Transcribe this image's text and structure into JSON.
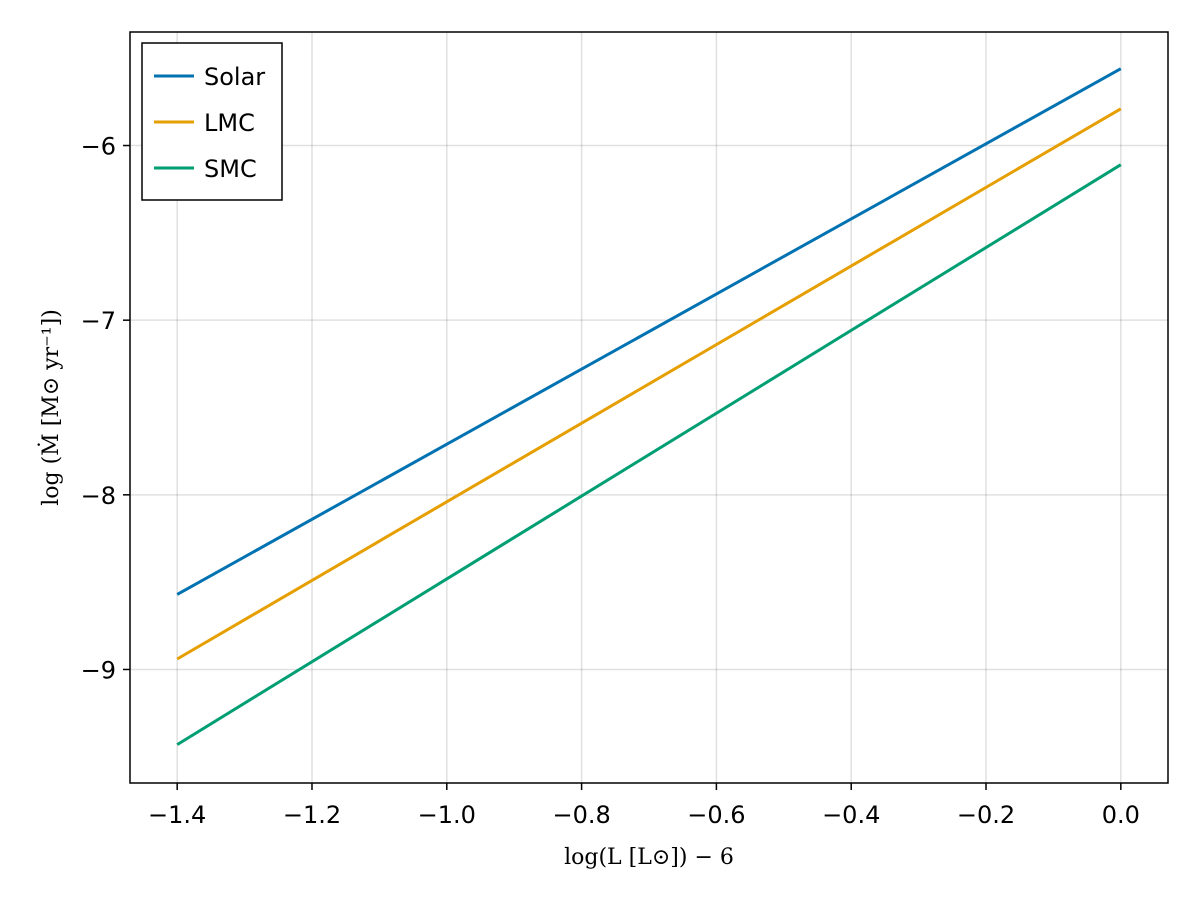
{
  "chart_data": {
    "type": "line",
    "title": "",
    "xlabel": "log(L [L⊙]) − 6",
    "ylabel": "log (Ṁ [M⊙ yr⁻¹])",
    "xlim": [
      -1.47,
      0.07
    ],
    "ylim": [
      -9.65,
      -5.35
    ],
    "xticks": [
      -1.4,
      -1.2,
      -1.0,
      -0.8,
      -0.6,
      -0.4,
      -0.2,
      0.0
    ],
    "xtick_labels": [
      "−1.4",
      "−1.2",
      "−1.0",
      "−0.8",
      "−0.6",
      "−0.4",
      "−0.2",
      "0.0"
    ],
    "yticks": [
      -9,
      -8,
      -7,
      -6
    ],
    "ytick_labels": [
      "−9",
      "−8",
      "−7",
      "−6"
    ],
    "grid": true,
    "legend_position": "top-left",
    "series": [
      {
        "name": "Solar",
        "color": "#0072b2",
        "x": [
          -1.4,
          0.0
        ],
        "y": [
          -8.57,
          -5.56
        ]
      },
      {
        "name": "LMC",
        "color": "#e69f00",
        "x": [
          -1.4,
          0.0
        ],
        "y": [
          -8.94,
          -5.79
        ]
      },
      {
        "name": "SMC",
        "color": "#009e73",
        "x": [
          -1.4,
          0.0
        ],
        "y": [
          -9.43,
          -6.11
        ]
      }
    ]
  }
}
